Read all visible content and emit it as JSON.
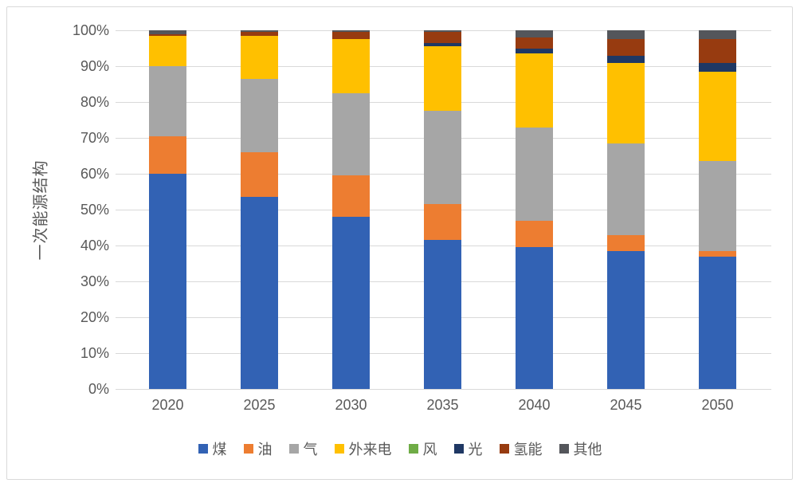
{
  "chart_data": {
    "type": "bar",
    "stacked": true,
    "title": "",
    "xlabel": "",
    "ylabel": "一次能源结构",
    "ylim": [
      0,
      100
    ],
    "ytick_step": 10,
    "yticks": [
      "0%",
      "10%",
      "20%",
      "30%",
      "40%",
      "50%",
      "60%",
      "70%",
      "80%",
      "90%",
      "100%"
    ],
    "grid": true,
    "legend_position": "bottom",
    "categories": [
      "2020",
      "2025",
      "2030",
      "2035",
      "2040",
      "2045",
      "2050"
    ],
    "series": [
      {
        "name": "煤",
        "color": "#3262B4",
        "values": [
          60,
          53.5,
          48,
          41.5,
          39.5,
          38.5,
          37
        ]
      },
      {
        "name": "油",
        "color": "#ED7D31",
        "values": [
          10.5,
          12.5,
          11.5,
          10,
          7.5,
          4.5,
          1.5
        ]
      },
      {
        "name": "气",
        "color": "#A6A6A6",
        "values": [
          19.5,
          20.5,
          23,
          26,
          26,
          25.5,
          25
        ]
      },
      {
        "name": "外来电",
        "color": "#FFC000",
        "values": [
          8.5,
          12,
          15,
          18,
          20.5,
          22.5,
          25
        ]
      },
      {
        "name": "风",
        "color": "#6FAC46",
        "values": [
          0,
          0,
          0,
          0,
          0,
          0,
          0
        ]
      },
      {
        "name": "光",
        "color": "#1F3864",
        "values": [
          0,
          0,
          0,
          1,
          1.5,
          2,
          2.5
        ]
      },
      {
        "name": "氢能",
        "color": "#973B10",
        "values": [
          0.5,
          1,
          2,
          3,
          3,
          4.5,
          6.5
        ]
      },
      {
        "name": "其他",
        "color": "#54565B",
        "values": [
          1,
          0.5,
          0.5,
          0.5,
          2,
          2.5,
          2.5
        ]
      }
    ],
    "colors": {
      "text": "#595959",
      "gridline": "#d9d9d9",
      "frame_border": "#d9d9d9",
      "background": "#ffffff"
    }
  }
}
